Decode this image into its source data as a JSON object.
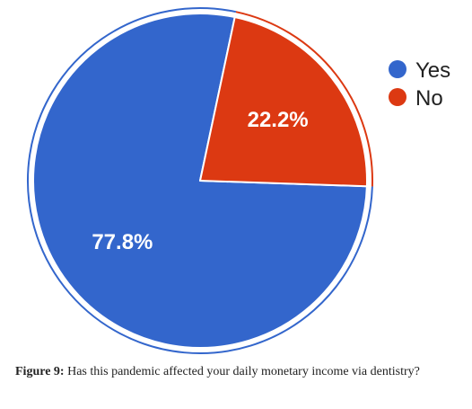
{
  "chart_data": {
    "type": "pie",
    "categories": [
      "Yes",
      "No"
    ],
    "values": [
      77.8,
      22.2
    ],
    "data_labels": [
      "77.8%",
      "22.2%"
    ],
    "colors": [
      "#3366cc",
      "#dc3912"
    ],
    "legend": [
      "Yes",
      "No"
    ],
    "legend_position": "right"
  },
  "caption": {
    "label": "Figure 9:",
    "text": "Has this pandemic affected your daily monetary income via dentistry?"
  }
}
